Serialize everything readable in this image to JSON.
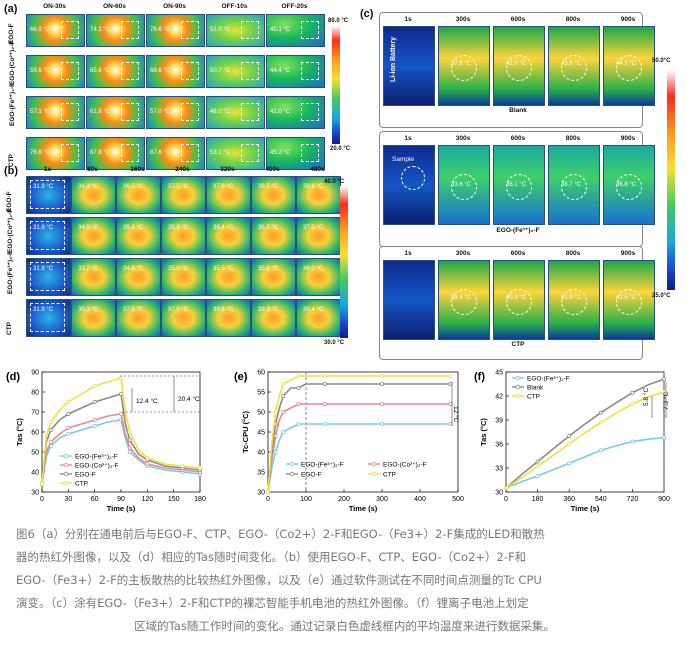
{
  "panels": {
    "a": {
      "letter": "(a)",
      "time_labels": [
        "ON-30s",
        "ON-60s",
        "ON-90s",
        "OFF-10s",
        "OFF-20s"
      ],
      "rows": [
        {
          "label": "EGO-F",
          "temps": [
            "66.9 °C",
            "74.1 °C",
            "76.6 °C",
            "51.0 °C",
            "45.1 °C"
          ]
        },
        {
          "label": "EGO-(Co²⁺)₂-F",
          "temps": [
            "59.6 °C",
            "65.6 °C",
            "68.6 °C",
            "50.7 °C",
            "44.4 °C"
          ]
        },
        {
          "label": "EGO-(Fe³⁺)₂-F",
          "temps": [
            "57.1 °C",
            "61.8 °C",
            "57.0 °C",
            "48.0 °C",
            "42.0 °C"
          ]
        },
        {
          "label": "CTP",
          "temps": [
            "76.8 °C",
            "87.8 °C",
            "87.6 °C",
            "53.1 °C",
            "45.2 °C"
          ]
        }
      ],
      "colorbar_max": "80.0 °C",
      "colorbar_min": "20.0 °C"
    },
    "b": {
      "letter": "(b)",
      "time_labels": [
        "1s",
        "80s",
        "160s",
        "240s",
        "320s",
        "400s",
        "480s"
      ],
      "rows": [
        {
          "label": "EGO-F",
          "temps": [
            "31.9 °C",
            "34.4 °C",
            "36.5 °C",
            "37.5 °C",
            "37.9 °C",
            "38.5 °C",
            "38.6 °C"
          ]
        },
        {
          "label": "EGO-(Co²⁺)₂-F",
          "temps": [
            "31.9 °C",
            "34.0 °C",
            "35.4 °C",
            "35.9 °C",
            "36.4 °C",
            "36.7 °C",
            "37.0 °C"
          ]
        },
        {
          "label": "EGO-(Fe³⁺)₂-F",
          "temps": [
            "31.9 °C",
            "33.7 °C",
            "34.9 °C",
            "35.0 °C",
            "35.5 °C",
            "35.8 °C",
            "36.0 °C"
          ]
        },
        {
          "label": "CTP",
          "temps": [
            "31.9 °C",
            "35.3 °C",
            "37.5 °C",
            "37.5 °C",
            "38.6 °C",
            "39.3 °C",
            "39.4 °C"
          ]
        }
      ],
      "colorbar_max": "40.0 °C",
      "colorbar_min": "30.0 °C"
    },
    "c": {
      "letter": "(c)",
      "time_labels": [
        "1s",
        "300s",
        "600s",
        "800s",
        "900s"
      ],
      "groups": [
        {
          "label": "Blank",
          "first_note": "Li-ion Battery",
          "temps": [
            "",
            "37.8 °C",
            "42.0 °C",
            "43.6 °C",
            "44.1 °C"
          ]
        },
        {
          "label": "EGO-(Fe³⁺)₂-F",
          "first_note": "Sample",
          "temps": [
            "",
            "33.6 °C",
            "36.1 °C",
            "36.7 °C",
            "36.8 °C"
          ]
        },
        {
          "label": "CTP",
          "first_note": "",
          "temps": [
            "",
            "38.4 °C",
            "40.3 °C",
            "41.8 °C",
            "42.5 °C"
          ]
        }
      ],
      "colorbar_max": "50.0°C",
      "colorbar_min": "25.0°C"
    }
  },
  "chart_data": [
    {
      "panel": "(d)",
      "type": "line",
      "xlabel": "Time (s)",
      "ylabel": "Tas (°C)",
      "xlim": [
        0,
        180
      ],
      "ylim": [
        30,
        90
      ],
      "xticks": [
        0,
        30,
        60,
        90,
        120,
        150,
        180
      ],
      "yticks": [
        30,
        40,
        50,
        60,
        70,
        80,
        90
      ],
      "annotations": [
        "12.4 °C",
        "20.4 °C"
      ],
      "series": [
        {
          "name": "EGO-(Fe³⁺)₂-F",
          "color": "#7ec8ec",
          "x": [
            0,
            5,
            10,
            20,
            30,
            45,
            60,
            75,
            90,
            95,
            100,
            110,
            120,
            140,
            160,
            180
          ],
          "y": [
            34,
            48,
            53,
            57,
            59,
            61,
            63,
            65,
            66,
            57,
            50,
            46,
            43,
            41,
            40,
            39
          ]
        },
        {
          "name": "EGO-(Co²⁺)₂-F",
          "color": "#e88a8a",
          "x": [
            0,
            5,
            10,
            20,
            30,
            45,
            60,
            75,
            90,
            95,
            100,
            110,
            120,
            140,
            160,
            180
          ],
          "y": [
            34,
            50,
            55,
            59,
            62,
            64,
            66,
            68,
            69,
            59,
            52,
            47,
            44,
            42,
            41,
            40
          ]
        },
        {
          "name": "EGO-F",
          "color": "#8a8a8a",
          "x": [
            0,
            5,
            10,
            20,
            30,
            45,
            60,
            75,
            90,
            95,
            100,
            110,
            120,
            140,
            160,
            180
          ],
          "y": [
            34,
            55,
            61,
            66,
            69,
            72,
            75,
            77,
            79,
            64,
            56,
            49,
            46,
            43,
            42,
            41
          ]
        },
        {
          "name": "CTP",
          "color": "#f0e040",
          "x": [
            0,
            5,
            10,
            20,
            30,
            45,
            60,
            75,
            90,
            95,
            100,
            110,
            120,
            140,
            160,
            180
          ],
          "y": [
            34,
            58,
            65,
            71,
            75,
            79,
            83,
            85,
            87,
            70,
            60,
            51,
            47,
            44,
            43,
            42
          ]
        }
      ]
    },
    {
      "panel": "(e)",
      "type": "line",
      "xlabel": "Time (s)",
      "ylabel": "Tc-CPU (°C)",
      "xlim": [
        0,
        500
      ],
      "ylim": [
        30,
        60
      ],
      "xticks": [
        0,
        100,
        200,
        300,
        400,
        500
      ],
      "yticks": [
        30,
        35,
        40,
        45,
        50,
        55,
        60
      ],
      "annotations": [
        "12 °C"
      ],
      "series": [
        {
          "name": "EGO-(Fe³⁺)₂-F",
          "color": "#7ec8ec",
          "x": [
            0,
            10,
            20,
            30,
            40,
            60,
            80,
            100,
            150,
            200,
            300,
            400,
            480
          ],
          "y": [
            30,
            36,
            40,
            43,
            45,
            46,
            47,
            47,
            47,
            47,
            47,
            47,
            47
          ]
        },
        {
          "name": "EGO-(Co²⁺)₂-F",
          "color": "#e88a8a",
          "x": [
            0,
            10,
            20,
            30,
            40,
            60,
            80,
            100,
            150,
            200,
            300,
            400,
            480
          ],
          "y": [
            30,
            38,
            44,
            48,
            50,
            51,
            52,
            52,
            52,
            52,
            52,
            52,
            52
          ]
        },
        {
          "name": "EGO-F",
          "color": "#8a8a8a",
          "x": [
            0,
            10,
            20,
            30,
            40,
            60,
            80,
            100,
            150,
            200,
            300,
            400,
            480
          ],
          "y": [
            30,
            40,
            47,
            51,
            54,
            56,
            56,
            57,
            57,
            57,
            57,
            57,
            57
          ]
        },
        {
          "name": "CTP",
          "color": "#f0e040",
          "x": [
            0,
            10,
            20,
            30,
            40,
            60,
            80,
            100,
            150,
            200,
            300,
            400,
            480
          ],
          "y": [
            30,
            42,
            50,
            54,
            57,
            58,
            59,
            59,
            59,
            59,
            59,
            59,
            59
          ]
        }
      ]
    },
    {
      "panel": "(f)",
      "type": "line",
      "xlabel": "Time (s)",
      "ylabel": "Tas (°C)",
      "xlim": [
        0,
        900
      ],
      "ylim": [
        30,
        45
      ],
      "xticks": [
        0,
        180,
        360,
        540,
        720,
        900
      ],
      "yticks": [
        30,
        33,
        36,
        39,
        42,
        45
      ],
      "annotations": [
        "5.8 °C",
        "7.3 °C"
      ],
      "series": [
        {
          "name": "EGO-(Fe³⁺)₂-F",
          "color": "#7ec8ec",
          "x": [
            0,
            90,
            180,
            270,
            360,
            450,
            540,
            630,
            720,
            810,
            900
          ],
          "y": [
            30.5,
            31.3,
            32.0,
            32.8,
            33.6,
            34.4,
            35.2,
            35.8,
            36.3,
            36.6,
            36.8
          ]
        },
        {
          "name": "Blank",
          "color": "#8a8a8a",
          "x": [
            0,
            90,
            180,
            270,
            360,
            450,
            540,
            630,
            720,
            810,
            900
          ],
          "y": [
            30.5,
            32.2,
            33.8,
            35.4,
            37.0,
            38.5,
            39.9,
            41.2,
            42.4,
            43.4,
            44.1
          ]
        },
        {
          "name": "CTP",
          "color": "#f0e040",
          "x": [
            0,
            90,
            180,
            270,
            360,
            450,
            540,
            630,
            720,
            810,
            900
          ],
          "y": [
            30.5,
            31.8,
            33.2,
            34.6,
            36.0,
            37.4,
            38.7,
            39.9,
            41.0,
            41.9,
            42.5
          ]
        }
      ]
    }
  ],
  "caption": {
    "lines": [
      "图6（a）分别在通电前后与EGO-F、CTP、EGO-（Co2+）2-F和EGO-（Fe3+）2-F集成的LED和散热",
      "器的热红外图像，以及（d）相应的Tas随时间变化。（b）使用EGO-F、CTP、EGO-（Co2+）2-F和",
      "EGO-（Fe3+）2-F的主板散热的比较热红外图像，以及（e）通过软件测试在不同时间点测量的Tc CPU",
      "演变。（c）涂有EGO-（Fe3+）2-F和CTP的裸芯智能手机电池的热红外图像。（f）锂离子电池上划定",
      "区域的Tas随工作时间的变化。通过记录白色虚线框内的平均温度来进行数据采集。"
    ]
  }
}
